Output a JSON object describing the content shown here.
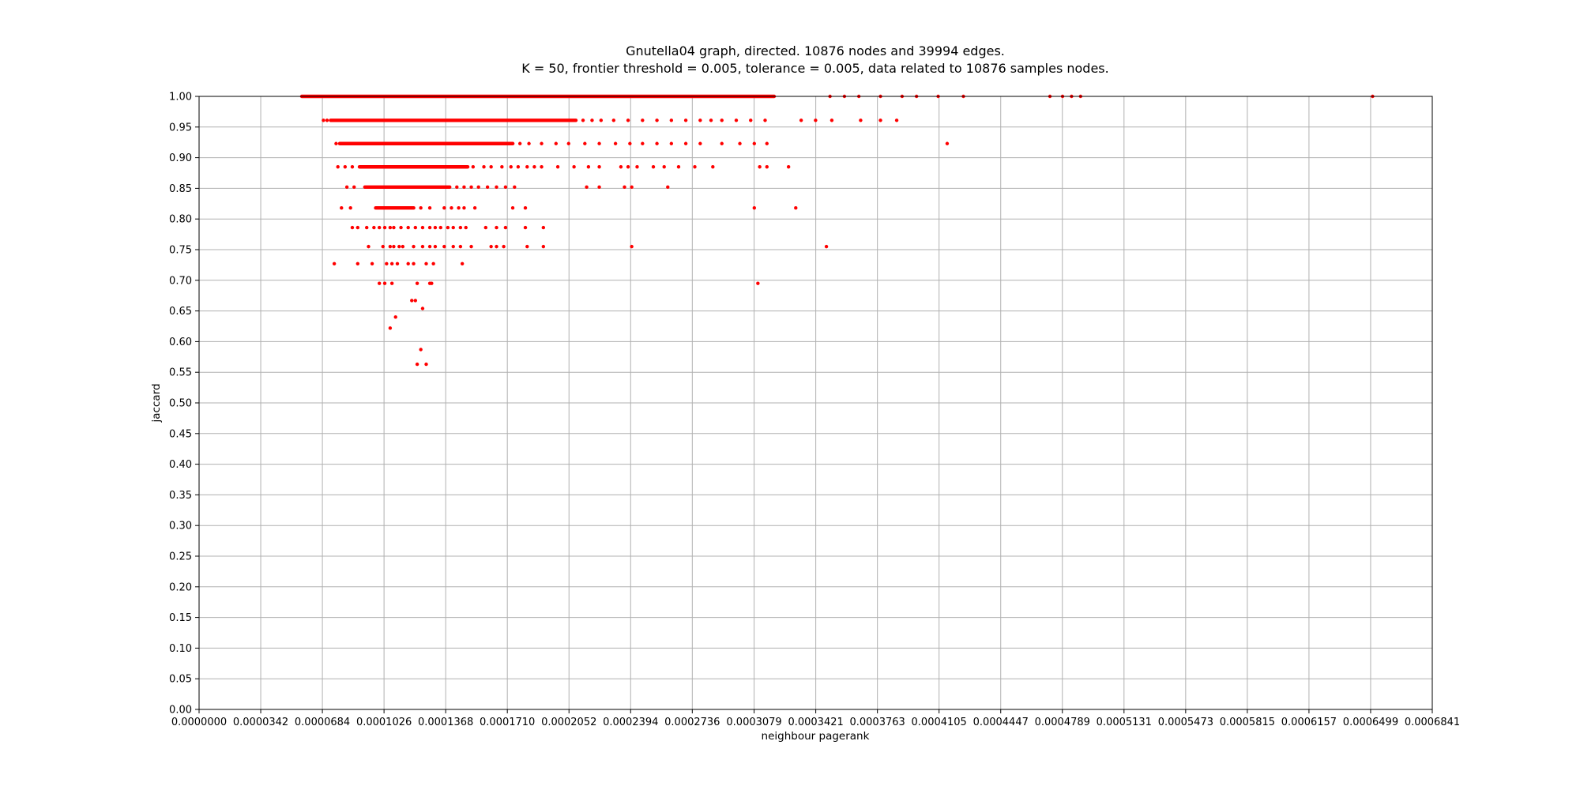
{
  "chart_data": {
    "type": "scatter",
    "title": "Gnutella04 graph, directed. 10876 nodes and 39994 edges.",
    "subtitle": "K = 50, frontier threshold = 0.005, tolerance = 0.005, data related to 10876 samples nodes.",
    "xlabel": "neighbour pagerank",
    "ylabel": "jaccard",
    "xlim": [
      0,
      0.0006841
    ],
    "ylim": [
      0,
      1
    ],
    "grid": true,
    "marker_color": "#ff0000",
    "x_ticks": [
      "0.0000000",
      "0.0000342",
      "0.0000684",
      "0.0001026",
      "0.0001368",
      "0.0001710",
      "0.0002052",
      "0.0002394",
      "0.0002736",
      "0.0003079",
      "0.0003421",
      "0.0003763",
      "0.0004105",
      "0.0004447",
      "0.0004789",
      "0.0005131",
      "0.0005473",
      "0.0005815",
      "0.0006157",
      "0.0006499",
      "0.0006841"
    ],
    "y_ticks": [
      "0.00",
      "0.05",
      "0.10",
      "0.15",
      "0.20",
      "0.25",
      "0.30",
      "0.35",
      "0.40",
      "0.45",
      "0.50",
      "0.55",
      "0.60",
      "0.65",
      "0.70",
      "0.75",
      "0.80",
      "0.85",
      "0.90",
      "0.95",
      "1.00"
    ],
    "bands": [
      {
        "y": 1.0,
        "x_from": 5.6e-05,
        "x_to": 0.00032
      },
      {
        "y": 0.961,
        "x_from": 7.2e-05,
        "x_to": 0.00021
      },
      {
        "y": 0.923,
        "x_from": 7.7e-05,
        "x_to": 0.000175
      },
      {
        "y": 0.885,
        "x_from": 8.8e-05,
        "x_to": 0.00015
      },
      {
        "y": 0.852,
        "x_from": 9.1e-05,
        "x_to": 0.00014
      },
      {
        "y": 0.818,
        "x_from": 9.7e-05,
        "x_to": 0.00012
      }
    ],
    "points": [
      [
        0.00035,
        1.0
      ],
      [
        0.000358,
        1.0
      ],
      [
        0.000366,
        1.0
      ],
      [
        0.000378,
        1.0
      ],
      [
        0.00039,
        1.0
      ],
      [
        0.000398,
        1.0
      ],
      [
        0.00041,
        1.0
      ],
      [
        0.000424,
        1.0
      ],
      [
        0.000472,
        1.0
      ],
      [
        0.000479,
        1.0
      ],
      [
        0.000484,
        1.0
      ],
      [
        0.000489,
        1.0
      ],
      [
        0.000651,
        1.0
      ],
      [
        6.9e-05,
        0.961
      ],
      [
        7.1e-05,
        0.961
      ],
      [
        0.000213,
        0.961
      ],
      [
        0.000218,
        0.961
      ],
      [
        0.000223,
        0.961
      ],
      [
        0.00023,
        0.961
      ],
      [
        0.000238,
        0.961
      ],
      [
        0.000246,
        0.961
      ],
      [
        0.000254,
        0.961
      ],
      [
        0.000262,
        0.961
      ],
      [
        0.00027,
        0.961
      ],
      [
        0.000278,
        0.961
      ],
      [
        0.000284,
        0.961
      ],
      [
        0.00029,
        0.961
      ],
      [
        0.000298,
        0.961
      ],
      [
        0.000306,
        0.961
      ],
      [
        0.000314,
        0.961
      ],
      [
        0.000334,
        0.961
      ],
      [
        0.000342,
        0.961
      ],
      [
        0.000351,
        0.961
      ],
      [
        0.000367,
        0.961
      ],
      [
        0.000378,
        0.961
      ],
      [
        0.000387,
        0.961
      ],
      [
        7.6e-05,
        0.923
      ],
      [
        0.000178,
        0.923
      ],
      [
        0.000183,
        0.923
      ],
      [
        0.00019,
        0.923
      ],
      [
        0.000198,
        0.923
      ],
      [
        0.000205,
        0.923
      ],
      [
        0.000214,
        0.923
      ],
      [
        0.000222,
        0.923
      ],
      [
        0.000231,
        0.923
      ],
      [
        0.000239,
        0.923
      ],
      [
        0.000246,
        0.923
      ],
      [
        0.000254,
        0.923
      ],
      [
        0.000262,
        0.923
      ],
      [
        0.00027,
        0.923
      ],
      [
        0.000278,
        0.923
      ],
      [
        0.00029,
        0.923
      ],
      [
        0.0003,
        0.923
      ],
      [
        0.000308,
        0.923
      ],
      [
        0.000315,
        0.923
      ],
      [
        0.000415,
        0.923
      ],
      [
        7.7e-05,
        0.885
      ],
      [
        8.1e-05,
        0.885
      ],
      [
        8.5e-05,
        0.885
      ],
      [
        0.000152,
        0.885
      ],
      [
        0.000158,
        0.885
      ],
      [
        0.000162,
        0.885
      ],
      [
        0.000168,
        0.885
      ],
      [
        0.000173,
        0.885
      ],
      [
        0.000177,
        0.885
      ],
      [
        0.000182,
        0.885
      ],
      [
        0.000186,
        0.885
      ],
      [
        0.00019,
        0.885
      ],
      [
        0.000199,
        0.885
      ],
      [
        0.000208,
        0.885
      ],
      [
        0.000216,
        0.885
      ],
      [
        0.000222,
        0.885
      ],
      [
        0.000234,
        0.885
      ],
      [
        0.000238,
        0.885
      ],
      [
        0.000243,
        0.885
      ],
      [
        0.000252,
        0.885
      ],
      [
        0.000258,
        0.885
      ],
      [
        0.000266,
        0.885
      ],
      [
        0.000275,
        0.885
      ],
      [
        0.000285,
        0.885
      ],
      [
        0.000311,
        0.885
      ],
      [
        0.000315,
        0.885
      ],
      [
        0.000327,
        0.885
      ],
      [
        8.2e-05,
        0.852
      ],
      [
        8.6e-05,
        0.852
      ],
      [
        0.000143,
        0.852
      ],
      [
        0.000147,
        0.852
      ],
      [
        0.000151,
        0.852
      ],
      [
        0.000155,
        0.852
      ],
      [
        0.00016,
        0.852
      ],
      [
        0.000165,
        0.852
      ],
      [
        0.00017,
        0.852
      ],
      [
        0.000175,
        0.852
      ],
      [
        0.000215,
        0.852
      ],
      [
        0.000222,
        0.852
      ],
      [
        0.000236,
        0.852
      ],
      [
        0.00024,
        0.852
      ],
      [
        0.00026,
        0.852
      ],
      [
        7.9e-05,
        0.818
      ],
      [
        8.4e-05,
        0.818
      ],
      [
        0.000123,
        0.818
      ],
      [
        0.000128,
        0.818
      ],
      [
        0.000136,
        0.818
      ],
      [
        0.00014,
        0.818
      ],
      [
        0.000144,
        0.818
      ],
      [
        0.000147,
        0.818
      ],
      [
        0.000153,
        0.818
      ],
      [
        0.000174,
        0.818
      ],
      [
        0.000181,
        0.818
      ],
      [
        0.000308,
        0.818
      ],
      [
        0.000331,
        0.818
      ],
      [
        8.5e-05,
        0.786
      ],
      [
        8.8e-05,
        0.786
      ],
      [
        9.3e-05,
        0.786
      ],
      [
        9.7e-05,
        0.786
      ],
      [
        0.0001,
        0.786
      ],
      [
        0.000103,
        0.786
      ],
      [
        0.000106,
        0.786
      ],
      [
        0.000108,
        0.786
      ],
      [
        0.000112,
        0.786
      ],
      [
        0.000116,
        0.786
      ],
      [
        0.00012,
        0.786
      ],
      [
        0.000124,
        0.786
      ],
      [
        0.000128,
        0.786
      ],
      [
        0.000131,
        0.786
      ],
      [
        0.000134,
        0.786
      ],
      [
        0.000138,
        0.786
      ],
      [
        0.000141,
        0.786
      ],
      [
        0.000145,
        0.786
      ],
      [
        0.000148,
        0.786
      ],
      [
        0.000159,
        0.786
      ],
      [
        0.000165,
        0.786
      ],
      [
        0.00017,
        0.786
      ],
      [
        0.000181,
        0.786
      ],
      [
        0.000191,
        0.786
      ],
      [
        9.4e-05,
        0.755
      ],
      [
        0.000102,
        0.755
      ],
      [
        0.000106,
        0.755
      ],
      [
        0.000108,
        0.755
      ],
      [
        0.000111,
        0.755
      ],
      [
        0.000113,
        0.755
      ],
      [
        0.000119,
        0.755
      ],
      [
        0.000124,
        0.755
      ],
      [
        0.000128,
        0.755
      ],
      [
        0.000131,
        0.755
      ],
      [
        0.000136,
        0.755
      ],
      [
        0.000141,
        0.755
      ],
      [
        0.000145,
        0.755
      ],
      [
        0.000151,
        0.755
      ],
      [
        0.000162,
        0.755
      ],
      [
        0.000165,
        0.755
      ],
      [
        0.000169,
        0.755
      ],
      [
        0.000182,
        0.755
      ],
      [
        0.000191,
        0.755
      ],
      [
        0.00024,
        0.755
      ],
      [
        0.000348,
        0.755
      ],
      [
        7.5e-05,
        0.727
      ],
      [
        8.8e-05,
        0.727
      ],
      [
        9.6e-05,
        0.727
      ],
      [
        0.000104,
        0.727
      ],
      [
        0.000107,
        0.727
      ],
      [
        0.00011,
        0.727
      ],
      [
        0.000116,
        0.727
      ],
      [
        0.000119,
        0.727
      ],
      [
        0.000126,
        0.727
      ],
      [
        0.00013,
        0.727
      ],
      [
        0.000146,
        0.727
      ],
      [
        0.0001,
        0.695
      ],
      [
        0.000103,
        0.695
      ],
      [
        0.000107,
        0.695
      ],
      [
        0.000121,
        0.695
      ],
      [
        0.000128,
        0.695
      ],
      [
        0.000129,
        0.695
      ],
      [
        0.00031,
        0.695
      ],
      [
        0.000118,
        0.667
      ],
      [
        0.00012,
        0.667
      ],
      [
        0.000124,
        0.654
      ],
      [
        0.000109,
        0.64
      ],
      [
        0.000106,
        0.622
      ],
      [
        0.000123,
        0.587
      ],
      [
        0.000121,
        0.563
      ],
      [
        0.000126,
        0.563
      ]
    ]
  }
}
